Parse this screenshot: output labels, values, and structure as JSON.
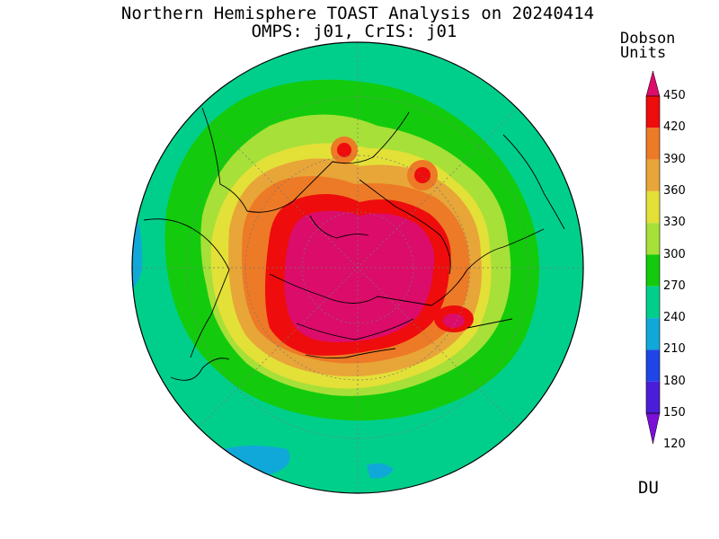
{
  "title": "Northern Hemisphere TOAST Analysis on 20240414",
  "subtitle": "OMPS: j01, CrIS: j01",
  "legend": {
    "units_line1": "Dobson",
    "units_line2": "Units",
    "bottom_label": "DU",
    "ticks": [
      "450",
      "420",
      "390",
      "360",
      "330",
      "300",
      "270",
      "240",
      "210",
      "180",
      "150",
      "120"
    ],
    "bands": [
      {
        "from": 120,
        "to": 150,
        "color": "#7a10d8"
      },
      {
        "from": 150,
        "to": 180,
        "color": "#4a1ed8"
      },
      {
        "from": 180,
        "to": 210,
        "color": "#1f45e6"
      },
      {
        "from": 210,
        "to": 240,
        "color": "#10a8d8"
      },
      {
        "from": 240,
        "to": 270,
        "color": "#00cf8c"
      },
      {
        "from": 270,
        "to": 300,
        "color": "#13cb0c"
      },
      {
        "from": 300,
        "to": 330,
        "color": "#a7e038"
      },
      {
        "from": 330,
        "to": 360,
        "color": "#e3e037"
      },
      {
        "from": 360,
        "to": 390,
        "color": "#e8a538"
      },
      {
        "from": 390,
        "to": 420,
        "color": "#ed7a26"
      },
      {
        "from": 420,
        "to": 450,
        "color": "#ee0c0c"
      },
      {
        "from": 450,
        "to": 480,
        "color": "#dc0c6a"
      }
    ]
  },
  "map": {
    "projection": "north polar stereographic",
    "ocean_color": "#00cf8c",
    "coastline_color": "#000000"
  }
}
